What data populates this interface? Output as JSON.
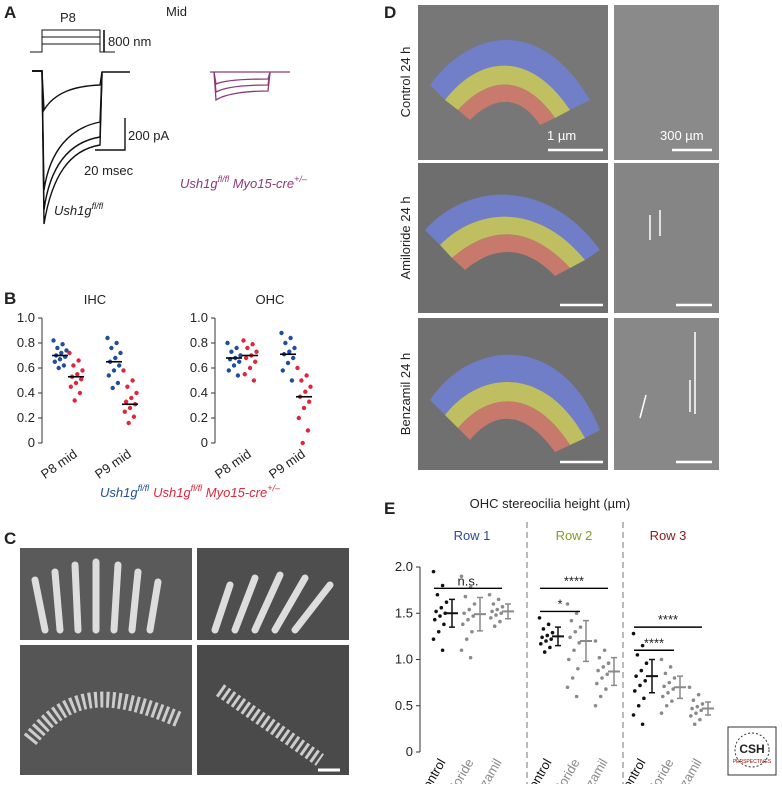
{
  "panel_letters": {
    "a": "A",
    "b": "B",
    "c": "C",
    "d": "D",
    "e": "E"
  },
  "panel_a": {
    "protocol_label": "P8",
    "region": "Mid",
    "step_scale": "800 nm",
    "current_scale": "200 pA",
    "time_scale": "20 msec",
    "control_genotype": [
      "Ush1g",
      "fl/fl"
    ],
    "mutant_genotype": [
      "Ush1g",
      "fl/fl",
      " Myo15-cre",
      "+/–"
    ]
  },
  "panel_d": {
    "rows": [
      "Control 24 h",
      "Amiloride 24 h",
      "Benzamil 24 h"
    ],
    "scale_left": "1 µm",
    "scale_right": "300 µm"
  },
  "logo": {
    "title": "CSH",
    "subtitle": "PERSPECTIVES"
  },
  "chart_data": [
    {
      "type": "strip",
      "title": "IHC",
      "categories": [
        "P8 mid",
        "P9 mid"
      ],
      "ylim": [
        0,
        1
      ],
      "yticks": [
        0,
        0.2,
        0.4,
        0.6,
        0.8,
        {
          "value": 1,
          "label": "1.0"
        }
      ],
      "series": [
        {
          "color": "#1f4e9c",
          "values": [
            [
              0.82,
              0.79,
              0.76,
              0.74,
              0.72,
              0.7,
              0.69,
              0.67,
              0.65,
              0.62,
              0.6
            ],
            [
              0.84,
              0.8,
              0.76,
              0.72,
              0.68,
              0.65,
              0.62,
              0.58,
              0.54,
              0.48,
              0.44
            ]
          ],
          "medians": [
            0.7,
            0.65
          ]
        },
        {
          "color": "#e0263c",
          "values": [
            [
              0.72,
              0.66,
              0.62,
              0.58,
              0.55,
              0.53,
              0.51,
              0.48,
              0.45,
              0.4,
              0.34
            ],
            [
              0.58,
              0.5,
              0.45,
              0.4,
              0.36,
              0.33,
              0.31,
              0.28,
              0.25,
              0.21,
              0.16
            ]
          ],
          "medians": [
            0.53,
            0.31
          ]
        }
      ],
      "legend": [
        [
          "Ush1g",
          "fl/fl"
        ],
        [
          "Ush1g",
          "fl/fl",
          " Myo15-cre",
          "+/–"
        ]
      ]
    },
    {
      "type": "strip",
      "title": "OHC",
      "categories": [
        "P8 mid",
        "P9 mid"
      ],
      "ylim": [
        0,
        1
      ],
      "yticks": [
        0,
        0.2,
        0.4,
        0.6,
        0.8,
        {
          "value": 1,
          "label": "1.0"
        }
      ],
      "series": [
        {
          "color": "#1f4e9c",
          "values": [
            [
              0.8,
              0.76,
              0.73,
              0.7,
              0.68,
              0.67,
              0.65,
              0.62,
              0.58,
              0.54
            ],
            [
              0.88,
              0.84,
              0.8,
              0.76,
              0.73,
              0.71,
              0.68,
              0.64,
              0.58,
              0.5
            ]
          ],
          "medians": [
            0.68,
            0.71
          ]
        },
        {
          "color": "#e0263c",
          "values": [
            [
              0.82,
              0.79,
              0.76,
              0.73,
              0.7,
              0.68,
              0.65,
              0.6,
              0.55,
              0.5
            ],
            [
              0.6,
              0.54,
              0.5,
              0.45,
              0.41,
              0.37,
              0.33,
              0.28,
              0.2,
              0.1,
              0.0
            ]
          ],
          "medians": [
            0.7,
            0.37
          ]
        }
      ]
    },
    {
      "type": "strip-error",
      "title": "OHC stereocilia height (µm)",
      "groups": [
        {
          "label": "Row 1",
          "color": "#2a4a9c"
        },
        {
          "label": "Row 2",
          "color": "#8a9a2a"
        },
        {
          "label": "Row 3",
          "color": "#8c1c1c"
        }
      ],
      "categories": [
        "Control",
        "Amiloride",
        "Benzamil",
        "Control",
        "Amiloride",
        "Benzamil",
        "Control",
        "Amiloride",
        "Benzamil"
      ],
      "colors": [
        "#111111",
        "#8a8a8a",
        "#8a8a8a",
        "#111111",
        "#8a8a8a",
        "#8a8a8a",
        "#111111",
        "#8a8a8a",
        "#8a8a8a"
      ],
      "ylim": [
        0,
        2
      ],
      "yticks": [
        0,
        0.5,
        {
          "value": 1,
          "label": "1.0"
        },
        1.5,
        {
          "value": 2,
          "label": "2.0"
        }
      ],
      "values": [
        [
          1.95,
          1.8,
          1.7,
          1.62,
          1.56,
          1.52,
          1.5,
          1.47,
          1.43,
          1.38,
          1.3,
          1.22,
          1.1
        ],
        [
          1.9,
          1.78,
          1.68,
          1.6,
          1.54,
          1.5,
          1.47,
          1.43,
          1.38,
          1.3,
          1.22,
          1.1,
          1.02
        ],
        [
          1.7,
          1.65,
          1.6,
          1.57,
          1.54,
          1.52,
          1.5,
          1.48,
          1.45,
          1.41,
          1.36
        ],
        [
          1.45,
          1.38,
          1.33,
          1.29,
          1.26,
          1.24,
          1.22,
          1.2,
          1.17,
          1.13,
          1.08
        ],
        [
          1.6,
          1.5,
          1.42,
          1.35,
          1.3,
          1.24,
          1.18,
          1.1,
          1.0,
          0.9,
          0.8,
          0.7,
          0.6
        ],
        [
          1.2,
          1.1,
          1.02,
          0.96,
          0.92,
          0.88,
          0.84,
          0.8,
          0.74,
          0.68,
          0.6,
          0.5
        ],
        [
          1.28,
          1.15,
          1.05,
          0.96,
          0.88,
          0.82,
          0.77,
          0.72,
          0.66,
          0.58,
          0.5,
          0.4,
          0.3
        ],
        [
          1.0,
          0.92,
          0.85,
          0.8,
          0.75,
          0.71,
          0.68,
          0.64,
          0.6,
          0.55,
          0.5,
          0.42
        ],
        [
          0.7,
          0.62,
          0.56,
          0.52,
          0.49,
          0.47,
          0.45,
          0.42,
          0.39,
          0.35,
          0.3
        ]
      ],
      "means": [
        1.5,
        1.49,
        1.52,
        1.25,
        1.2,
        0.87,
        0.82,
        0.7,
        0.47
      ],
      "sds": [
        0.15,
        0.18,
        0.08,
        0.1,
        0.22,
        0.15,
        0.18,
        0.12,
        0.07
      ],
      "annotations": [
        {
          "text": "n.s.",
          "from": 0,
          "to": 2
        },
        {
          "text": "*",
          "from": 3,
          "to": 4
        },
        {
          "text": "****",
          "from": 3,
          "to": 5
        },
        {
          "text": "****",
          "from": 6,
          "to": 7
        },
        {
          "text": "****",
          "from": 6,
          "to": 8
        }
      ]
    }
  ]
}
